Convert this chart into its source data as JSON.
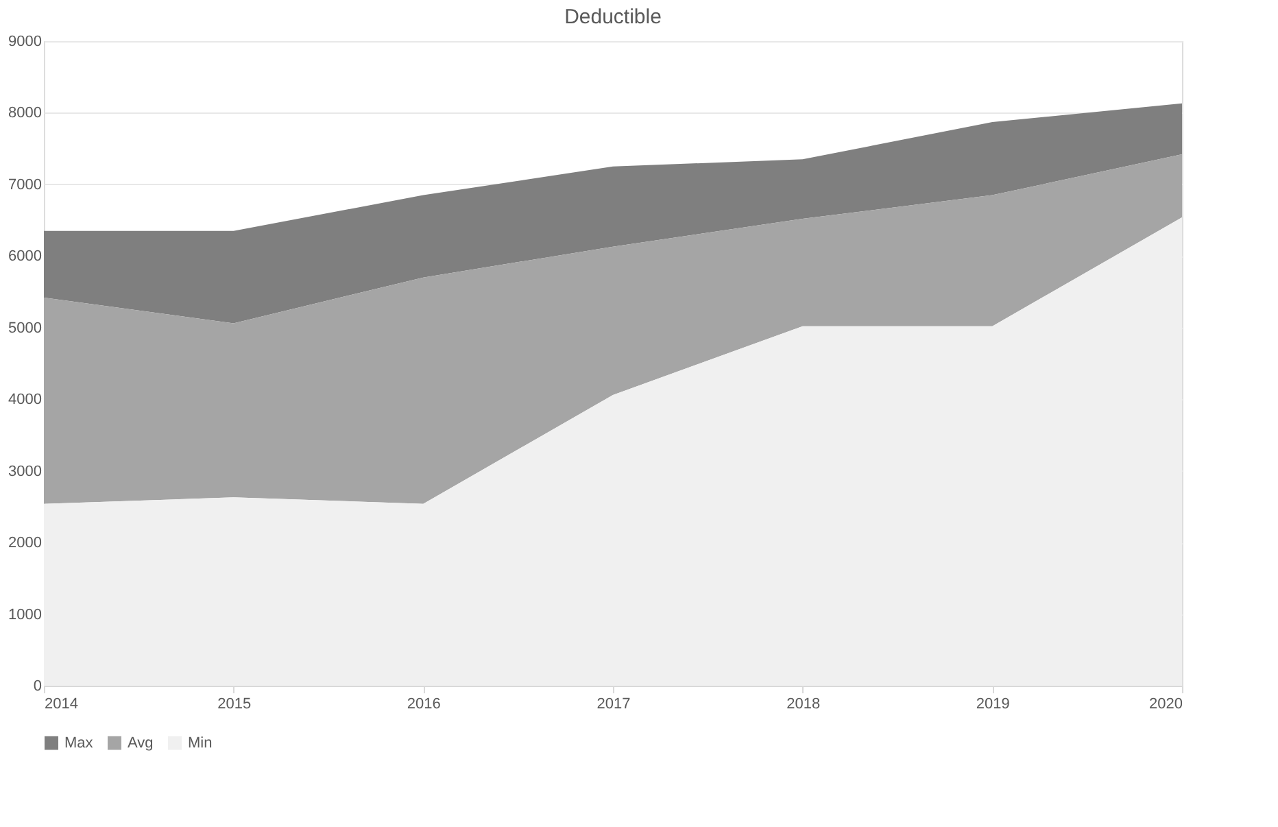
{
  "chart_data": {
    "type": "area",
    "title": "Deductible",
    "categories": [
      "2014",
      "2015",
      "2016",
      "2017",
      "2018",
      "2019",
      "2020"
    ],
    "series": [
      {
        "name": "Max",
        "color": "#7f7f7f",
        "values": [
          6350,
          6350,
          6850,
          7250,
          7350,
          7870,
          8130
        ]
      },
      {
        "name": "Avg",
        "color": "#a5a5a5",
        "values": [
          5420,
          5060,
          5700,
          6130,
          6520,
          6850,
          7420
        ]
      },
      {
        "name": "Min",
        "color": "#f0f0f0",
        "values": [
          2540,
          2630,
          2540,
          4060,
          5020,
          5020,
          6540
        ]
      }
    ],
    "ylim": [
      0,
      9000
    ],
    "yticks": [
      0,
      1000,
      2000,
      3000,
      4000,
      5000,
      6000,
      7000,
      8000,
      9000
    ],
    "grid": "y",
    "legend": "bottom"
  }
}
